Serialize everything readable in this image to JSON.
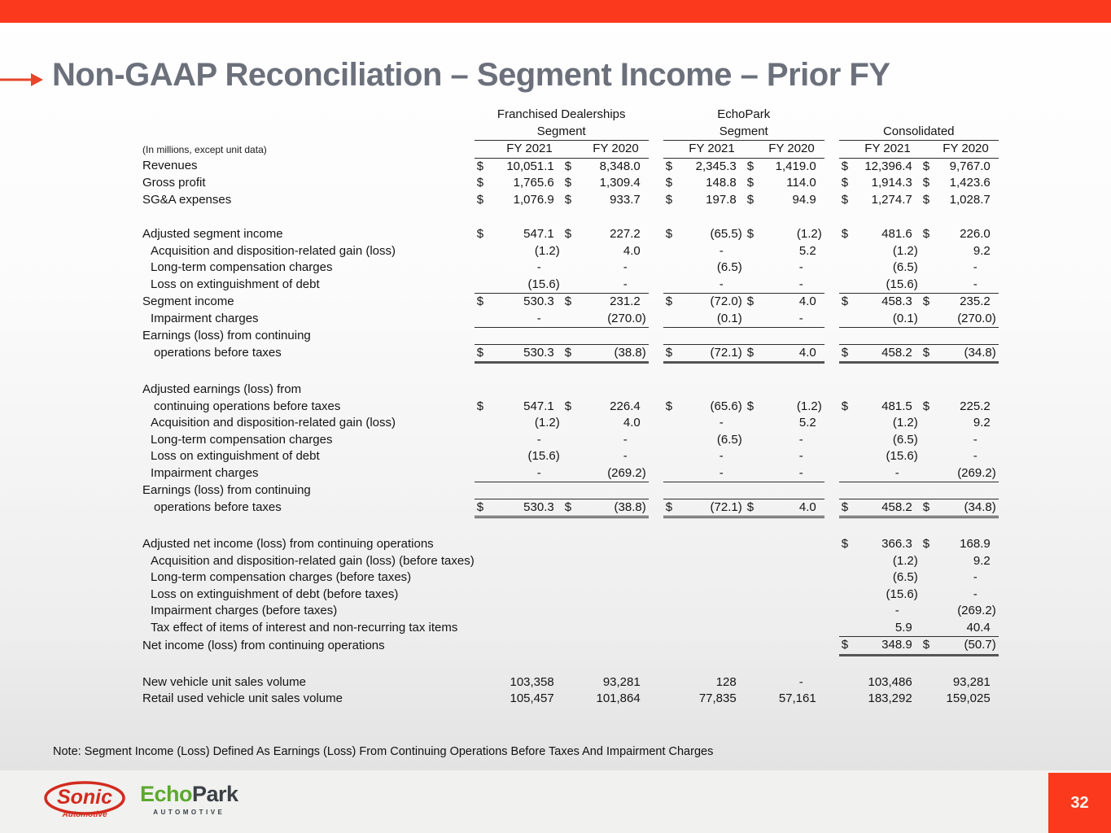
{
  "slide": {
    "title": "Non-GAAP Reconciliation – Segment Income – Prior FY",
    "note": "Note: Segment Income (Loss) Defined As Earnings (Loss) From Continuing Operations Before Taxes And Impairment Charges",
    "page_number": "32"
  },
  "colors": {
    "accent_red": "#FB3A1D",
    "arrow_red": "#E8452B",
    "title_gray": "#6B707B",
    "logo_red": "#D22B1F",
    "logo_green": "#5CA92E",
    "logo_dark": "#3A4046"
  },
  "footer": {
    "sonic_logo": {
      "name": "Sonic",
      "sub": "Automotive"
    },
    "echopark_logo": {
      "green": "Echo",
      "dark": "Park",
      "sub": "AUTOMOTIVE"
    }
  },
  "table": {
    "units_label": "(In millions, except unit data)",
    "column_groups": [
      {
        "line1": "Franchised Dealerships",
        "line2": "Segment"
      },
      {
        "line1": "EchoPark",
        "line2": "Segment"
      },
      {
        "line1": "",
        "line2": "Consolidated"
      }
    ],
    "year_headers": [
      "FY 2021",
      "FY 2020"
    ],
    "rows": [
      {
        "type": "data",
        "label": "Revenues",
        "indent": 0,
        "dollar": true,
        "values": [
          "10,051.1",
          "8,348.0",
          "2,345.3",
          "1,419.0",
          "12,396.4",
          "9,767.0"
        ]
      },
      {
        "type": "data",
        "label": "Gross profit",
        "indent": 0,
        "dollar": true,
        "values": [
          "1,765.6",
          "1,309.4",
          "148.8",
          "114.0",
          "1,914.3",
          "1,423.6"
        ]
      },
      {
        "type": "data",
        "label": "SG&A expenses",
        "indent": 0,
        "dollar": true,
        "values": [
          "1,076.9",
          "933.7",
          "197.8",
          "94.9",
          "1,274.7",
          "1,028.7"
        ]
      },
      {
        "type": "spacer"
      },
      {
        "type": "data",
        "label": "Adjusted segment income",
        "indent": 0,
        "dollar": true,
        "values": [
          "547.1",
          "227.2",
          "(65.5)",
          "(1.2)",
          "481.6",
          "226.0"
        ]
      },
      {
        "type": "data",
        "label": "Acquisition and disposition-related gain (loss)",
        "indent": 1,
        "values": [
          "(1.2)",
          "4.0",
          "-",
          "5.2",
          "(1.2)",
          "9.2"
        ]
      },
      {
        "type": "data",
        "label": "Long-term compensation charges",
        "indent": 1,
        "values": [
          "-",
          "-",
          "(6.5)",
          "-",
          "(6.5)",
          "-"
        ]
      },
      {
        "type": "data",
        "label": "Loss on extinguishment of debt",
        "indent": 1,
        "values": [
          "(15.6)",
          "-",
          "-",
          "-",
          "(15.6)",
          "-"
        ],
        "rule": "under",
        "ruleGroups": [
          0,
          1,
          2
        ]
      },
      {
        "type": "data",
        "label": "Segment income",
        "indent": 0,
        "dollar": true,
        "values": [
          "530.3",
          "231.2",
          "(72.0)",
          "4.0",
          "458.3",
          "235.2"
        ]
      },
      {
        "type": "data",
        "label": "Impairment charges",
        "indent": 1,
        "values": [
          "-",
          "(270.0)",
          "(0.1)",
          "-",
          "(0.1)",
          "(270.0)"
        ],
        "rule": "under",
        "ruleGroups": [
          0,
          1,
          2
        ]
      },
      {
        "type": "label",
        "label": "Earnings (loss) from continuing"
      },
      {
        "type": "data",
        "label": "operations before taxes",
        "indent": 2,
        "dollar": true,
        "values": [
          "530.3",
          "(38.8)",
          "(72.1)",
          "4.0",
          "458.2",
          "(34.8)"
        ],
        "rule": "total",
        "ruleGroups": [
          0,
          1,
          2
        ],
        "topRule": true
      },
      {
        "type": "spacer"
      },
      {
        "type": "label",
        "label": "Adjusted earnings (loss) from"
      },
      {
        "type": "data",
        "label": "continuing operations before taxes",
        "indent": 2,
        "dollar": true,
        "values": [
          "547.1",
          "226.4",
          "(65.6)",
          "(1.2)",
          "481.5",
          "225.2"
        ]
      },
      {
        "type": "data",
        "label": "Acquisition and disposition-related gain (loss)",
        "indent": 1,
        "values": [
          "(1.2)",
          "4.0",
          "-",
          "5.2",
          "(1.2)",
          "9.2"
        ]
      },
      {
        "type": "data",
        "label": "Long-term compensation charges",
        "indent": 1,
        "values": [
          "-",
          "-",
          "(6.5)",
          "-",
          "(6.5)",
          "-"
        ]
      },
      {
        "type": "data",
        "label": "Loss on extinguishment of debt",
        "indent": 1,
        "values": [
          "(15.6)",
          "-",
          "-",
          "-",
          "(15.6)",
          "-"
        ]
      },
      {
        "type": "data",
        "label": "Impairment charges",
        "indent": 1,
        "values": [
          "-",
          "(269.2)",
          "-",
          "-",
          "-",
          "(269.2)"
        ],
        "rule": "under",
        "ruleGroups": [
          0,
          1,
          2
        ]
      },
      {
        "type": "label",
        "label": "Earnings (loss) from continuing"
      },
      {
        "type": "data",
        "label": "operations before taxes",
        "indent": 2,
        "dollar": true,
        "values": [
          "530.3",
          "(38.8)",
          "(72.1)",
          "4.0",
          "458.2",
          "(34.8)"
        ],
        "rule": "totaldbl",
        "ruleGroups": [
          0,
          1,
          2
        ],
        "topRule": true
      },
      {
        "type": "spacer"
      },
      {
        "type": "data",
        "label": "Adjusted net income (loss) from continuing operations",
        "indent": 0,
        "dollar": true,
        "values": [
          "",
          "",
          "",
          "",
          "366.3",
          "168.9"
        ]
      },
      {
        "type": "data",
        "label": "Acquisition and disposition-related gain (loss) (before taxes)",
        "indent": 1,
        "values": [
          "",
          "",
          "",
          "",
          "(1.2)",
          "9.2"
        ]
      },
      {
        "type": "data",
        "label": "Long-term compensation charges (before taxes)",
        "indent": 1,
        "values": [
          "",
          "",
          "",
          "",
          "(6.5)",
          "-"
        ]
      },
      {
        "type": "data",
        "label": "Loss on extinguishment of debt (before taxes)",
        "indent": 1,
        "values": [
          "",
          "",
          "",
          "",
          "(15.6)",
          "-"
        ]
      },
      {
        "type": "data",
        "label": "Impairment charges (before taxes)",
        "indent": 1,
        "values": [
          "",
          "",
          "",
          "",
          "-",
          "(269.2)"
        ]
      },
      {
        "type": "data",
        "label": "Tax effect of items of interest and non-recurring tax items",
        "indent": 1,
        "values": [
          "",
          "",
          "",
          "",
          "5.9",
          "40.4"
        ],
        "rule": "under",
        "ruleGroups": [
          2
        ]
      },
      {
        "type": "data",
        "label": "Net income (loss) from continuing operations",
        "indent": 0,
        "dollar": true,
        "values": [
          "",
          "",
          "",
          "",
          "348.9",
          "(50.7)"
        ],
        "rule": "total",
        "ruleGroups": [
          2
        ]
      },
      {
        "type": "spacer"
      },
      {
        "type": "data",
        "label": "New vehicle unit sales volume",
        "indent": 0,
        "values": [
          "103,358",
          "93,281",
          "128",
          "-",
          "103,486",
          "93,281"
        ]
      },
      {
        "type": "data",
        "label": "Retail used vehicle unit sales volume",
        "indent": 0,
        "values": [
          "105,457",
          "101,864",
          "77,835",
          "57,161",
          "183,292",
          "159,025"
        ]
      }
    ]
  }
}
